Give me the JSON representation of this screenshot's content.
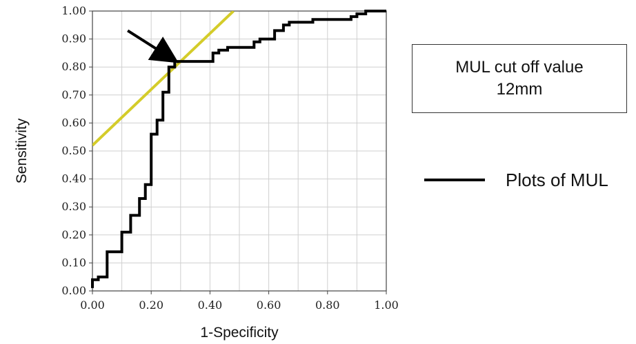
{
  "chart_data": {
    "type": "line",
    "title": "",
    "xlabel": "1-Specificity",
    "ylabel": "Sensitivity",
    "xlim": [
      0,
      1
    ],
    "ylim": [
      0,
      1
    ],
    "grid": true,
    "x_ticks": [
      "0.00",
      "0.20",
      "0.40",
      "0.60",
      "0.80",
      "1.00"
    ],
    "y_ticks": [
      "0.00",
      "0.10",
      "0.20",
      "0.30",
      "0.40",
      "0.50",
      "0.60",
      "0.70",
      "0.80",
      "0.90",
      "1.00"
    ],
    "series": [
      {
        "name": "Plots of MUL",
        "color": "#000000",
        "step": true,
        "x": [
          0.0,
          0.0,
          0.02,
          0.02,
          0.05,
          0.05,
          0.1,
          0.1,
          0.13,
          0.13,
          0.16,
          0.16,
          0.18,
          0.18,
          0.2,
          0.2,
          0.22,
          0.22,
          0.24,
          0.24,
          0.26,
          0.26,
          0.28,
          0.28,
          0.32,
          0.41,
          0.41,
          0.43,
          0.43,
          0.46,
          0.46,
          0.55,
          0.55,
          0.57,
          0.57,
          0.62,
          0.62,
          0.65,
          0.65,
          0.67,
          0.67,
          0.73,
          0.73,
          0.75,
          0.75,
          0.84,
          0.84,
          0.88,
          0.88,
          0.9,
          0.9,
          0.93,
          0.93,
          0.95,
          0.95,
          1.0
        ],
        "y": [
          0.01,
          0.04,
          0.04,
          0.05,
          0.05,
          0.14,
          0.14,
          0.21,
          0.21,
          0.27,
          0.27,
          0.33,
          0.33,
          0.38,
          0.38,
          0.56,
          0.56,
          0.61,
          0.61,
          0.71,
          0.71,
          0.8,
          0.8,
          0.82,
          0.82,
          0.82,
          0.85,
          0.85,
          0.86,
          0.86,
          0.87,
          0.87,
          0.89,
          0.89,
          0.9,
          0.9,
          0.93,
          0.93,
          0.95,
          0.95,
          0.96,
          0.96,
          0.96,
          0.96,
          0.97,
          0.97,
          0.97,
          0.97,
          0.98,
          0.98,
          0.99,
          0.99,
          1.0,
          1.0,
          1.0,
          1.0
        ]
      },
      {
        "name": "",
        "color": "#d4cc2a",
        "x": [
          0.0,
          0.48
        ],
        "y": [
          0.52,
          1.0
        ]
      }
    ],
    "annotations": [
      {
        "type": "arrow",
        "color": "#000000",
        "from": [
          0.12,
          0.93
        ],
        "to": [
          0.27,
          0.83
        ]
      }
    ],
    "legend": {
      "label": "Plots of MUL",
      "position": "right"
    },
    "annotation_box": {
      "line1": "MUL cut off value",
      "line2": "12mm"
    }
  }
}
